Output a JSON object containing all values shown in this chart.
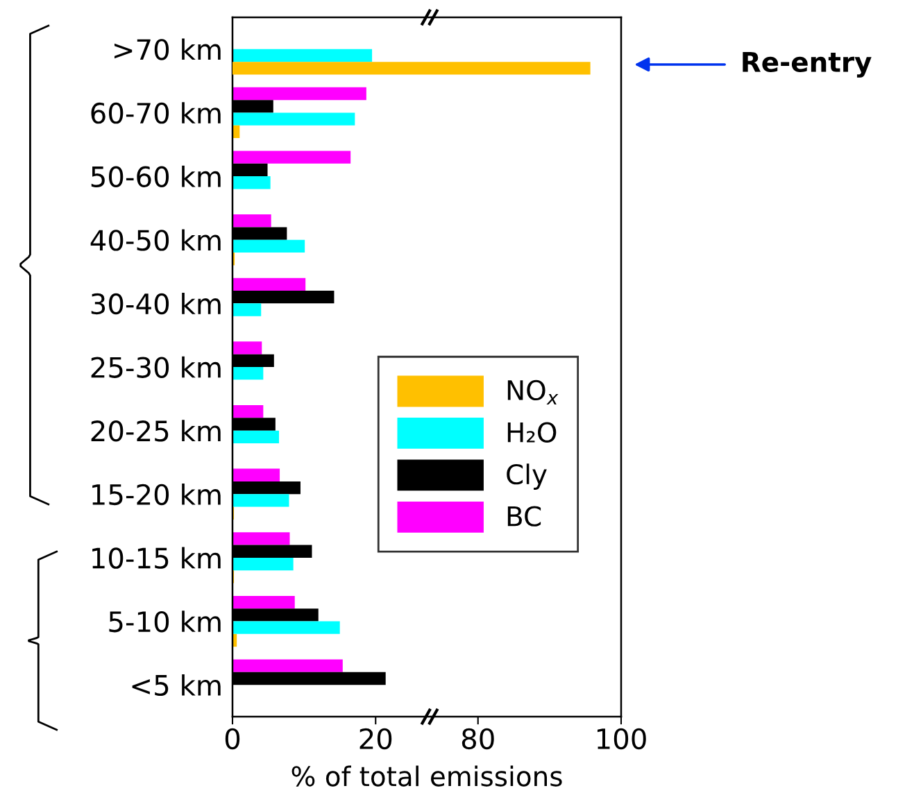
{
  "chart_data": [
    {
      "type": "bar",
      "orientation": "horizontal",
      "xlabel": "% of total emissions",
      "categories": [
        ">70 km",
        "60-70 km",
        "50-60 km",
        "40-50 km",
        "30-40 km",
        "25-30 km",
        "20-25 km",
        "15-20 km",
        "10-15 km",
        "5-10 km",
        "<5 km"
      ],
      "series": [
        {
          "name": "BC",
          "color": "#ff00ff",
          "values": [
            0,
            18.7,
            16.5,
            5.4,
            10.2,
            4.1,
            4.3,
            6.6,
            8.0,
            8.7,
            15.4
          ]
        },
        {
          "name": "Cly",
          "color": "#000000",
          "values": [
            0,
            5.7,
            4.9,
            7.6,
            14.2,
            5.8,
            6.0,
            9.5,
            11.1,
            12.0,
            21.4
          ]
        },
        {
          "name": "H₂O",
          "color": "#00ffff",
          "values": [
            19.5,
            17.1,
            5.3,
            10.1,
            4.0,
            4.3,
            6.5,
            7.9,
            8.5,
            15.0,
            0
          ]
        },
        {
          "name": "NO$_{x}$",
          "color": "#ffc000",
          "values": [
            null,
            1.0,
            0,
            0.3,
            0,
            0,
            0,
            0.2,
            0.2,
            0.6,
            0
          ]
        }
      ],
      "xlim": [
        0,
        27.8
      ],
      "xticks": [
        0,
        20
      ],
      "legend": "right",
      "grid": false,
      "annotations": [
        "Re-entry"
      ]
    },
    {
      "type": "bar",
      "orientation": "horizontal",
      "categories": [
        null,
        null,
        null,
        null,
        null,
        null,
        null,
        null,
        null,
        null,
        null
      ],
      "series": [
        {
          "color": "#ffc000",
          "values": [
            95.7,
            null,
            null,
            null,
            null,
            null,
            null,
            null,
            null,
            null,
            null
          ]
        }
      ],
      "xlim": [
        73.5,
        100
      ],
      "xticks": [
        80,
        100
      ],
      "tick_labels": "x",
      "grid": false
    }
  ]
}
